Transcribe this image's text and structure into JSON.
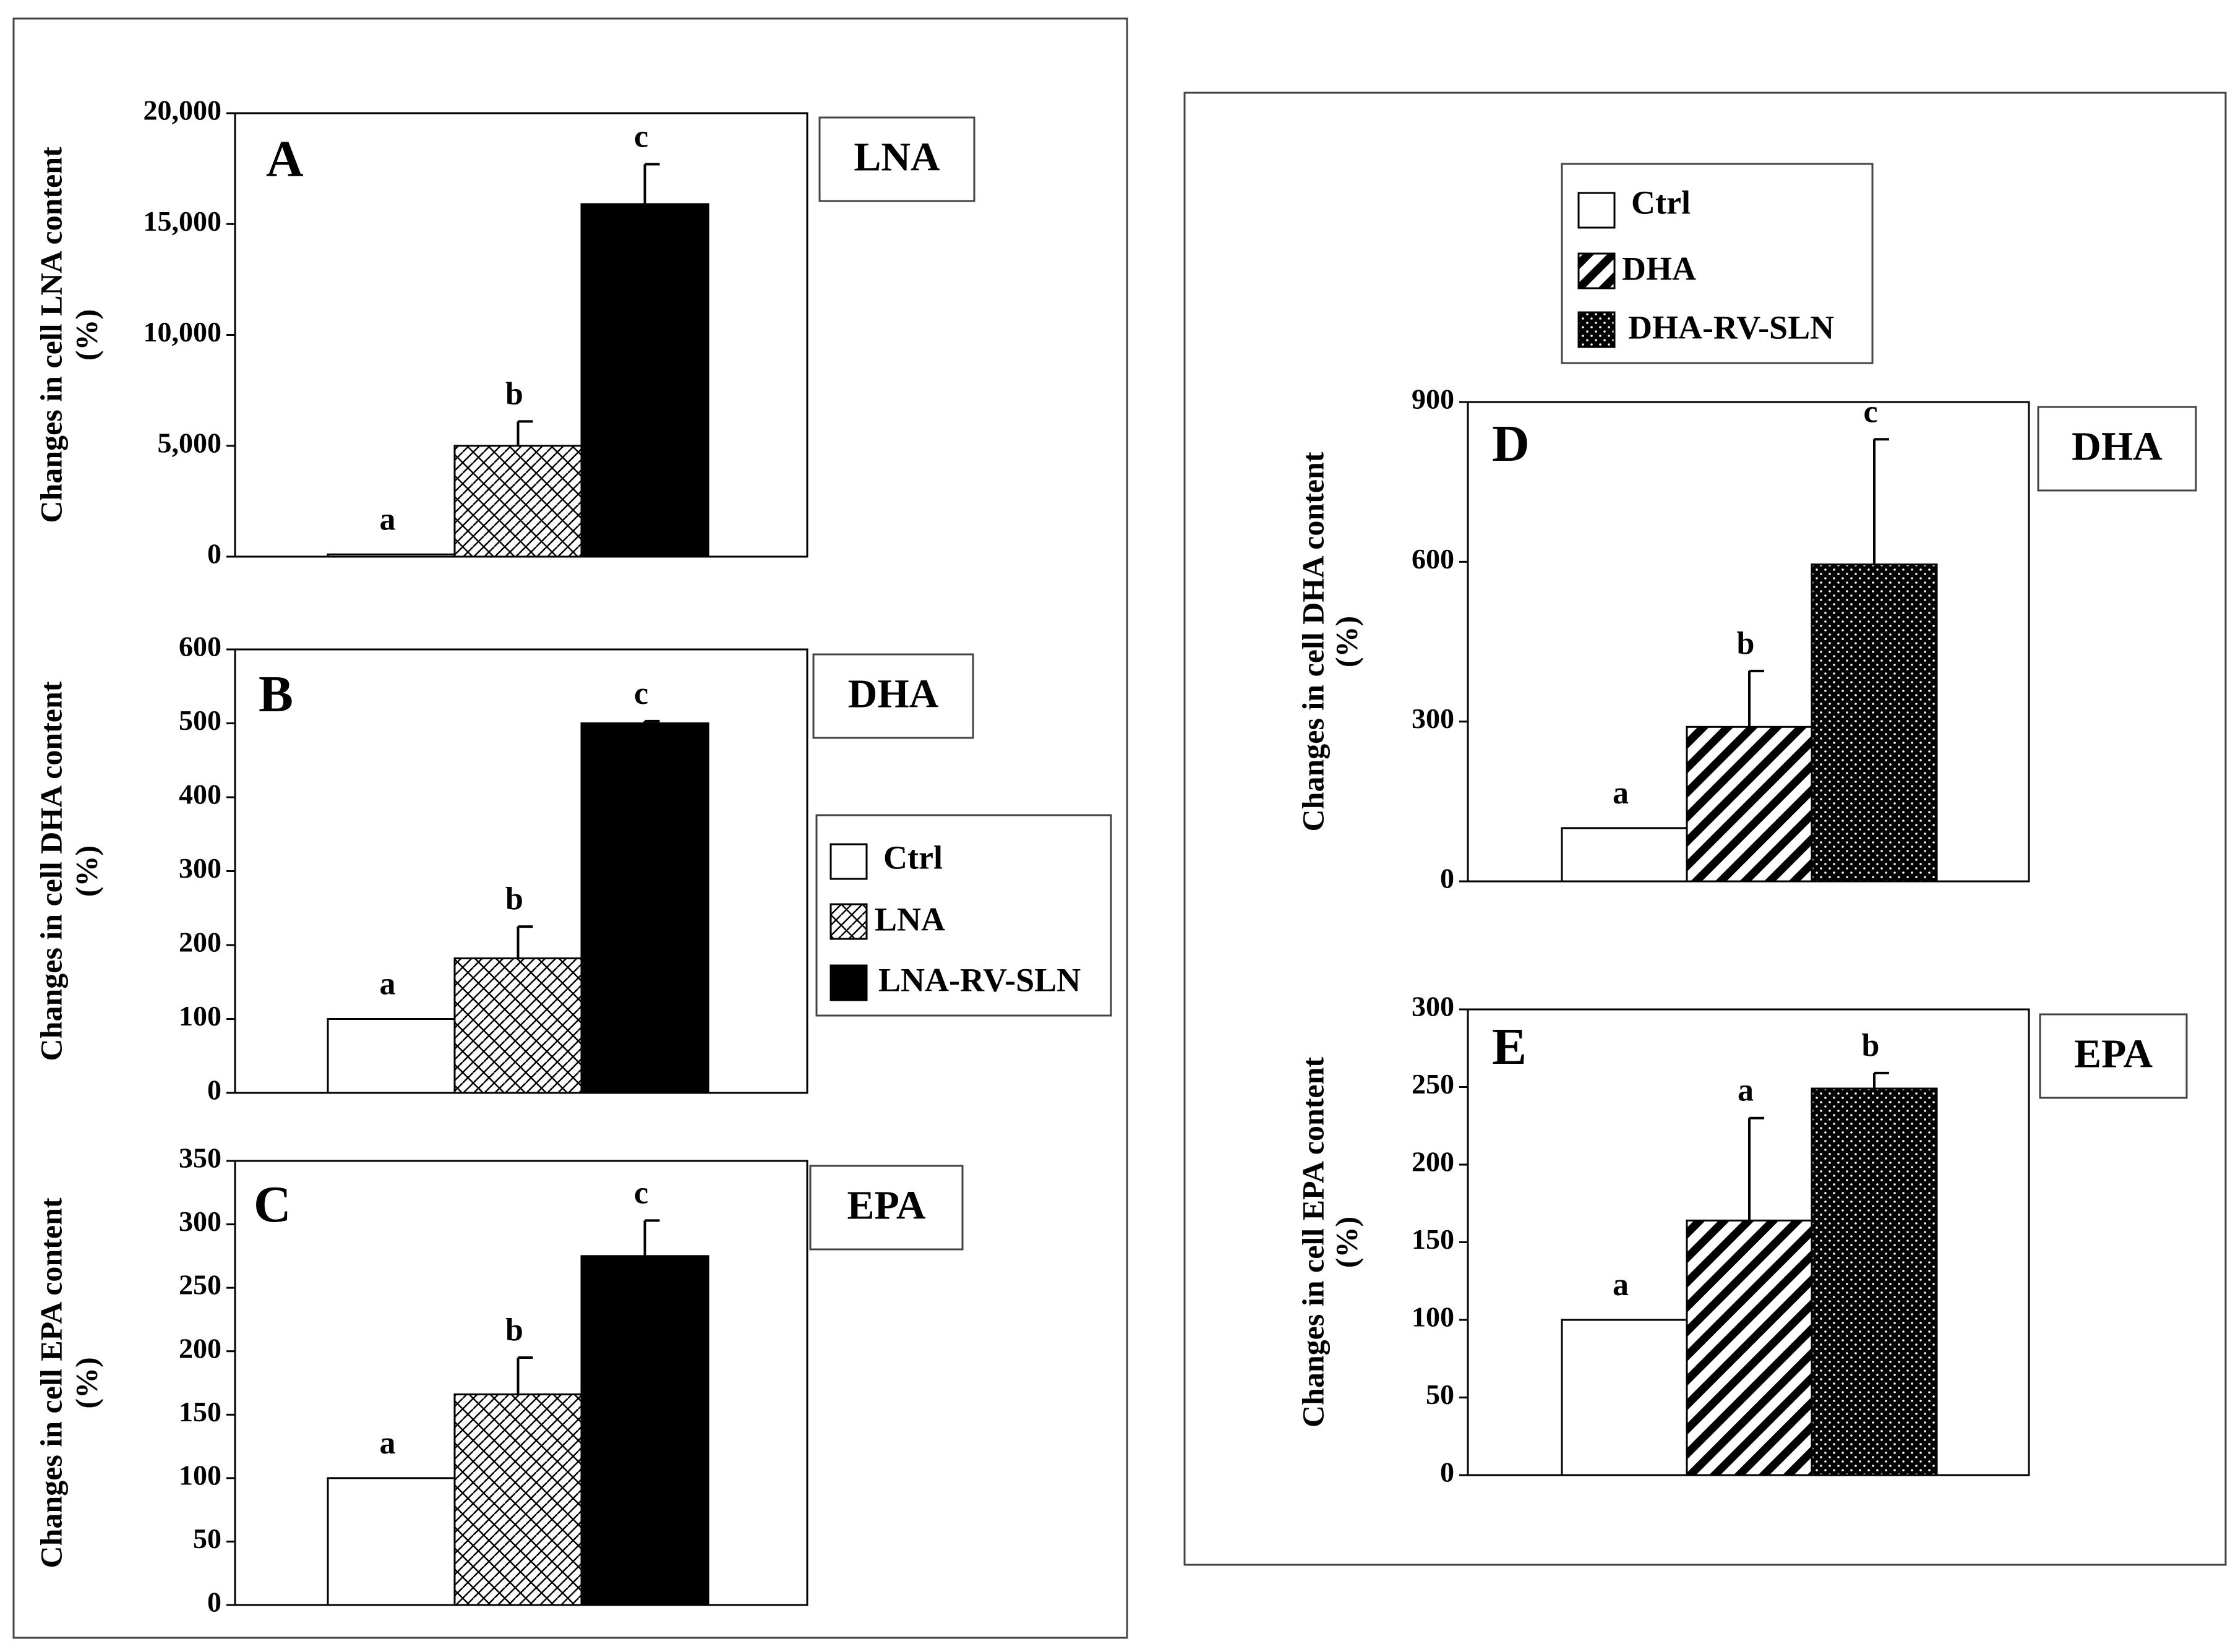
{
  "panels_left": {
    "legend": {
      "items": [
        {
          "label": "Ctrl",
          "pattern": "white"
        },
        {
          "label": "LNA",
          "pattern": "crosshatch"
        },
        {
          "label": "LNA-RV-SLN",
          "pattern": "black"
        }
      ]
    }
  },
  "panels_right": {
    "legend": {
      "items": [
        {
          "label": "Ctrl",
          "pattern": "white"
        },
        {
          "label": "DHA",
          "pattern": "diagonal"
        },
        {
          "label": "DHA-RV-SLN",
          "pattern": "dots"
        }
      ]
    }
  },
  "chart_data": [
    {
      "id": "A",
      "type": "bar",
      "panel_letter": "A",
      "tag": "LNA",
      "ylabel_line1": "Changes in cell LNA content",
      "ylabel_line2": "(%)",
      "ylim": [
        0,
        20000
      ],
      "yticks": [
        "0",
        "5,000",
        "10,000",
        "15,000",
        "20,000"
      ],
      "ytick_values": [
        0,
        5000,
        10000,
        15000,
        20000
      ],
      "categories": [
        "Ctrl",
        "LNA",
        "LNA-RV-SLN"
      ],
      "values": [
        100,
        5000,
        15900
      ],
      "errors": [
        0,
        1100,
        1800
      ],
      "letters": [
        "a",
        "b",
        "c"
      ],
      "patterns": [
        "white",
        "crosshatch",
        "black"
      ]
    },
    {
      "id": "B",
      "type": "bar",
      "panel_letter": "B",
      "tag": "DHA",
      "ylabel_line1": "Changes in cell DHA content",
      "ylabel_line2": "(%)",
      "ylim": [
        0,
        600
      ],
      "yticks": [
        "0",
        "100",
        "200",
        "300",
        "400",
        "500",
        "600"
      ],
      "ytick_values": [
        0,
        100,
        200,
        300,
        400,
        500,
        600
      ],
      "categories": [
        "Ctrl",
        "LNA",
        "LNA-RV-SLN"
      ],
      "values": [
        100,
        182,
        500
      ],
      "errors": [
        0,
        43,
        3
      ],
      "letters": [
        "a",
        "b",
        "c"
      ],
      "patterns": [
        "white",
        "crosshatch",
        "black"
      ]
    },
    {
      "id": "C",
      "type": "bar",
      "panel_letter": "C",
      "tag": "EPA",
      "ylabel_line1": "Changes in cell EPA content",
      "ylabel_line2": "(%)",
      "ylim": [
        0,
        350
      ],
      "yticks": [
        "0",
        "50",
        "100",
        "150",
        "200",
        "250",
        "300",
        "350"
      ],
      "ytick_values": [
        0,
        50,
        100,
        150,
        200,
        250,
        300,
        350
      ],
      "categories": [
        "Ctrl",
        "LNA",
        "LNA-RV-SLN"
      ],
      "values": [
        100,
        166,
        275
      ],
      "errors": [
        0,
        29,
        28
      ],
      "letters": [
        "a",
        "b",
        "c"
      ],
      "patterns": [
        "white",
        "crosshatch",
        "black"
      ]
    },
    {
      "id": "D",
      "type": "bar",
      "panel_letter": "D",
      "tag": "DHA",
      "ylabel_line1": "Changes in cell DHA content",
      "ylabel_line2": "(%)",
      "ylim": [
        0,
        900
      ],
      "yticks": [
        "0",
        "300",
        "600",
        "900"
      ],
      "ytick_values": [
        0,
        300,
        600,
        900
      ],
      "categories": [
        "Ctrl",
        "DHA",
        "DHA-RV-SLN"
      ],
      "values": [
        100,
        290,
        595
      ],
      "errors": [
        0,
        105,
        235
      ],
      "letters": [
        "a",
        "b",
        "c"
      ],
      "patterns": [
        "white",
        "diagonal",
        "dots"
      ]
    },
    {
      "id": "E",
      "type": "bar",
      "panel_letter": "E",
      "tag": "EPA",
      "ylabel_line1": "Changes in cell EPA content",
      "ylabel_line2": "(%)",
      "ylim": [
        0,
        300
      ],
      "yticks": [
        "0",
        "50",
        "100",
        "150",
        "200",
        "250",
        "300"
      ],
      "ytick_values": [
        0,
        50,
        100,
        150,
        200,
        250,
        300
      ],
      "categories": [
        "Ctrl",
        "DHA",
        "DHA-RV-SLN"
      ],
      "values": [
        100,
        164,
        249
      ],
      "errors": [
        0,
        66,
        10
      ],
      "letters": [
        "a",
        "a",
        "b"
      ],
      "patterns": [
        "white",
        "diagonal",
        "dots"
      ]
    }
  ]
}
